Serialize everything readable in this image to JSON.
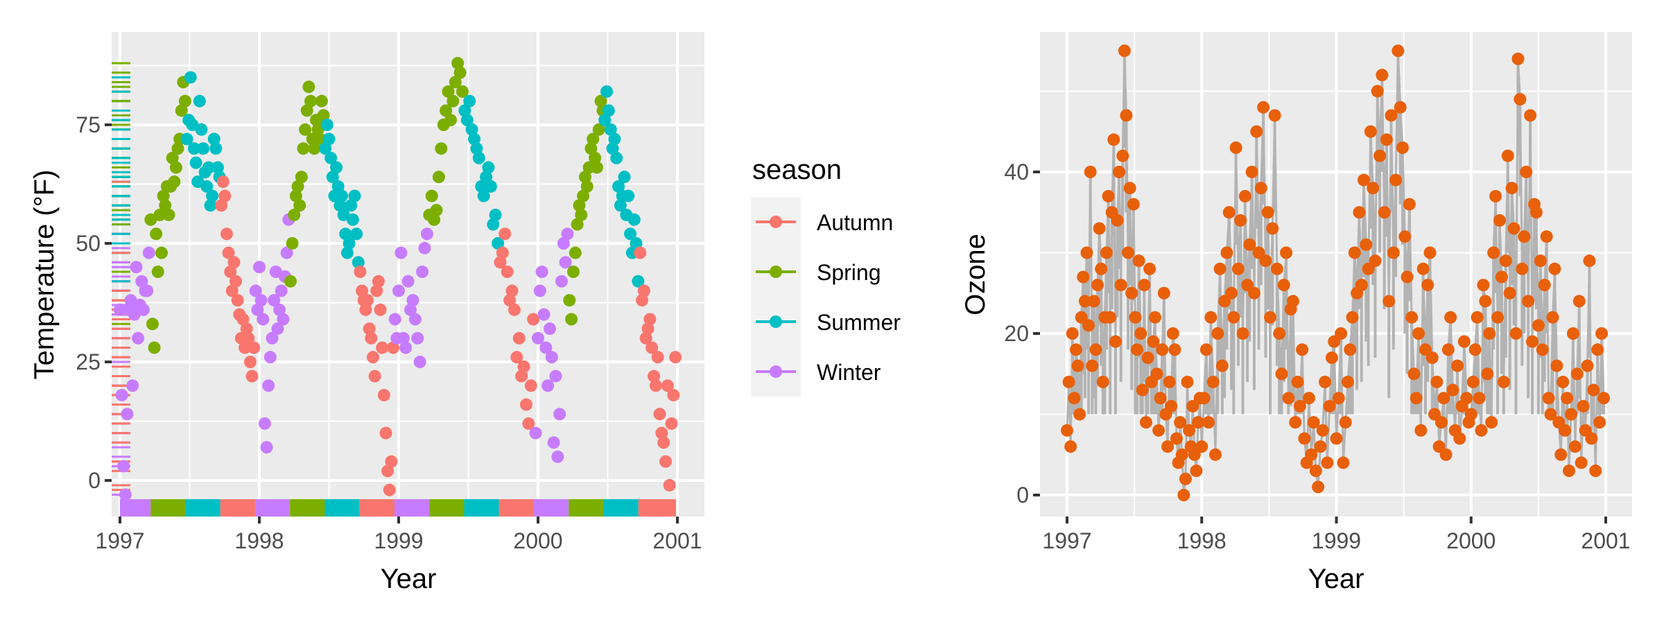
{
  "chart_data": [
    {
      "type": "scatter",
      "title": "",
      "xlabel": "Year",
      "ylabel": "Temperature (°F)",
      "xlim": [
        1996.82,
        2001.1
      ],
      "ylim": [
        -7,
        95
      ],
      "x_ticks": [
        "1997",
        "1998",
        "1999",
        "2000",
        "2001"
      ],
      "x_tick_values": [
        1997,
        1998,
        1999,
        2000,
        2001
      ],
      "y_ticks": [
        "0",
        "25",
        "50",
        "75"
      ],
      "y_tick_values": [
        0,
        25,
        50,
        75
      ],
      "grid": true,
      "legend": {
        "title": "season",
        "position": "right",
        "entries": [
          {
            "label": "Autumn",
            "color": "#F8766D"
          },
          {
            "label": "Spring",
            "color": "#7CAE00"
          },
          {
            "label": "Summer",
            "color": "#00BFC4"
          },
          {
            "label": "Winter",
            "color": "#C77CFF"
          }
        ]
      },
      "season_bands": [
        {
          "season": "Winter",
          "start": 1997.0,
          "end": 1997.22
        },
        {
          "season": "Spring",
          "start": 1997.22,
          "end": 1997.47
        },
        {
          "season": "Summer",
          "start": 1997.47,
          "end": 1997.72
        },
        {
          "season": "Autumn",
          "start": 1997.72,
          "end": 1997.97
        },
        {
          "season": "Winter",
          "start": 1997.97,
          "end": 1998.22
        },
        {
          "season": "Spring",
          "start": 1998.22,
          "end": 1998.47
        },
        {
          "season": "Summer",
          "start": 1998.47,
          "end": 1998.72
        },
        {
          "season": "Autumn",
          "start": 1998.72,
          "end": 1998.97
        },
        {
          "season": "Winter",
          "start": 1998.97,
          "end": 1999.22
        },
        {
          "season": "Spring",
          "start": 1999.22,
          "end": 1999.47
        },
        {
          "season": "Summer",
          "start": 1999.47,
          "end": 1999.72
        },
        {
          "season": "Autumn",
          "start": 1999.72,
          "end": 1999.97
        },
        {
          "season": "Winter",
          "start": 1999.97,
          "end": 2000.22
        },
        {
          "season": "Spring",
          "start": 2000.22,
          "end": 2000.47
        },
        {
          "season": "Summer",
          "start": 2000.47,
          "end": 2000.72
        },
        {
          "season": "Autumn",
          "start": 2000.72,
          "end": 2000.99
        }
      ],
      "series_by_year": {
        "year_start": 1997,
        "step_days": 4,
        "temps": [
          [
            36,
            18,
            3,
            -3,
            14,
            36,
            38,
            20,
            35,
            45,
            30,
            37,
            42,
            36,
            40,
            40,
            48,
            55,
            33,
            28,
            52,
            44,
            56,
            48,
            60,
            58,
            62,
            56,
            62,
            68,
            63,
            66,
            70,
            72,
            78,
            84,
            80,
            72,
            76,
            85,
            75,
            70,
            67,
            63,
            80,
            74,
            70,
            65,
            62,
            66,
            58,
            60,
            72,
            70,
            66,
            64,
            58,
            63,
            60,
            52,
            48,
            44,
            40,
            46,
            42,
            38,
            35,
            30,
            34,
            28,
            32,
            30,
            25,
            22,
            28,
            40,
            36
          ],
          [
            45,
            38,
            34,
            12,
            7,
            20,
            26,
            30,
            38,
            44,
            32,
            36,
            40,
            34,
            43,
            48,
            55,
            42,
            50,
            56,
            60,
            62,
            58,
            64,
            70,
            74,
            78,
            83,
            80,
            72,
            70,
            76,
            74,
            72,
            80,
            77,
            70,
            75,
            72,
            68,
            64,
            60,
            66,
            62,
            58,
            60,
            56,
            52,
            48,
            50,
            58,
            55,
            60,
            52,
            46,
            44,
            40,
            38,
            36,
            38,
            32,
            30,
            26,
            22,
            40,
            42,
            36,
            28,
            18,
            10,
            2,
            -2,
            4,
            28,
            34,
            30
          ],
          [
            40,
            48,
            30,
            28,
            42,
            36,
            38,
            34,
            30,
            25,
            44,
            49,
            52,
            56,
            60,
            55,
            57,
            64,
            70,
            75,
            78,
            82,
            76,
            80,
            84,
            88,
            86,
            82,
            78,
            76,
            80,
            74,
            72,
            70,
            68,
            62,
            60,
            64,
            66,
            62,
            54,
            56,
            50,
            46,
            48,
            52,
            44,
            38,
            40,
            36,
            26,
            30,
            22,
            24,
            16,
            12,
            20,
            34,
            10
          ],
          [
            30,
            40,
            44,
            35,
            28,
            20,
            32,
            26,
            8,
            22,
            5,
            14,
            42,
            50,
            46,
            52,
            38,
            34,
            44,
            48,
            54,
            58,
            56,
            60,
            64,
            62,
            66,
            70,
            72,
            68,
            66,
            74,
            80,
            78,
            76,
            82,
            78,
            74,
            70,
            72,
            68,
            62,
            58,
            60,
            64,
            56,
            60,
            52,
            48,
            55,
            50,
            42,
            48,
            38,
            40,
            30,
            32,
            34,
            28,
            22,
            20,
            26,
            14,
            10,
            8,
            4,
            20,
            -1,
            12,
            18,
            26
          ]
        ],
        "ozone": [
          [
            8,
            14,
            6,
            20,
            12,
            18,
            16,
            10,
            22,
            27,
            24,
            30,
            21,
            40,
            16,
            24,
            18,
            26,
            33,
            28,
            14,
            22,
            30,
            37,
            22,
            35,
            44,
            19,
            34,
            40,
            26,
            42,
            55,
            47,
            30,
            38,
            25,
            36,
            22,
            18,
            29,
            20,
            13,
            26,
            9,
            17,
            28,
            14,
            19,
            22,
            15,
            8,
            12,
            18,
            25,
            10,
            6,
            14,
            11,
            20,
            18,
            7,
            4,
            9,
            5,
            0,
            2,
            14,
            8,
            6,
            11,
            5,
            3,
            9,
            12
          ],
          [
            6,
            12,
            18,
            9,
            22,
            14,
            5,
            20,
            28,
            16,
            24,
            30,
            35,
            25,
            22,
            43,
            28,
            34,
            20,
            37,
            26,
            31,
            40,
            25,
            45,
            30,
            38,
            48,
            29,
            35,
            22,
            33,
            47,
            28,
            20,
            15,
            26,
            30,
            12,
            23,
            24,
            9,
            14,
            11,
            18,
            7,
            4,
            12,
            5,
            9,
            3,
            1,
            6,
            8,
            14,
            4,
            11,
            17,
            19
          ],
          [
            7,
            12,
            20,
            4,
            9,
            14,
            18,
            22,
            30,
            25,
            35,
            26,
            39,
            31,
            28,
            45,
            38,
            29,
            50,
            42,
            52,
            35,
            44,
            24,
            47,
            30,
            39,
            55,
            48,
            43,
            32,
            27,
            36,
            22,
            15,
            12,
            20,
            8,
            28,
            18,
            26,
            30,
            17,
            10,
            14,
            6,
            9,
            12,
            5,
            18,
            22,
            13,
            8,
            16,
            7,
            11,
            19,
            12,
            9
          ],
          [
            10,
            14,
            18,
            22,
            12,
            8,
            26,
            24,
            15,
            20,
            9,
            30,
            37,
            22,
            34,
            27,
            14,
            29,
            42,
            25,
            38,
            33,
            20,
            54,
            49,
            28,
            32,
            40,
            24,
            47,
            19,
            36,
            35,
            21,
            29,
            18,
            26,
            32,
            12,
            10,
            22,
            28,
            16,
            9,
            5,
            14,
            8,
            12,
            3,
            10,
            20,
            6,
            15,
            24,
            4,
            11,
            8,
            16,
            29,
            7,
            13,
            3,
            18,
            9,
            20,
            12
          ]
        ]
      }
    },
    {
      "type": "line",
      "title": "",
      "xlabel": "Year",
      "ylabel": "Ozone",
      "xlim": [
        1996.8,
        2001.2
      ],
      "ylim": [
        -3,
        57
      ],
      "x_ticks": [
        "1997",
        "1998",
        "1999",
        "2000",
        "2001"
      ],
      "x_tick_values": [
        1997,
        1998,
        1999,
        2000,
        2001
      ],
      "y_ticks": [
        "0",
        "20",
        "40"
      ],
      "y_tick_values": [
        0,
        20,
        40
      ],
      "grid": true,
      "point_color": "#E8600A",
      "line_color": "#B3B3B3"
    }
  ]
}
